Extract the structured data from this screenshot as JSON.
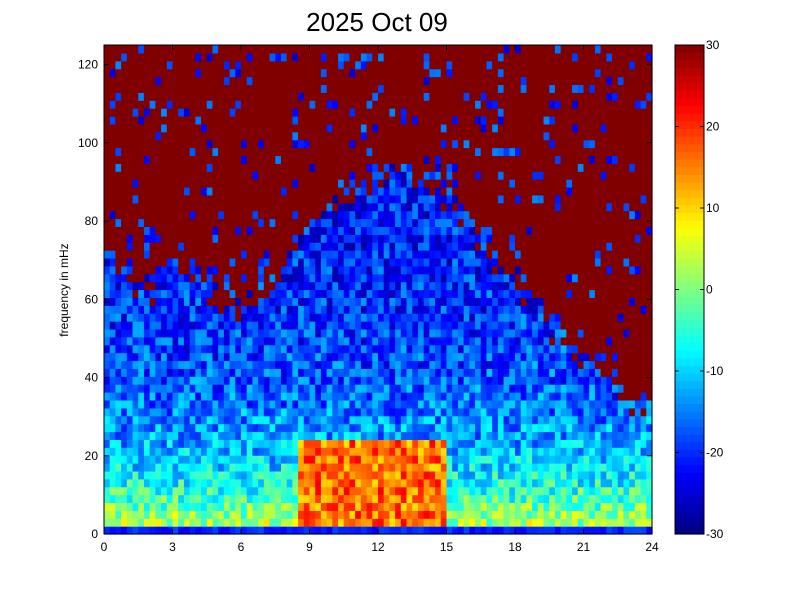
{
  "chart_data": {
    "type": "heatmap",
    "title": "2025 Oct 09",
    "xlabel": "",
    "ylabel": "frequency in mHz",
    "xlim": [
      0,
      24
    ],
    "ylim": [
      0,
      125
    ],
    "x_ticks": [
      "0",
      "3",
      "6",
      "9",
      "12",
      "15",
      "18",
      "21",
      "24"
    ],
    "y_ticks": [
      "0",
      "20",
      "40",
      "60",
      "80",
      "100",
      "120"
    ],
    "colorbar": {
      "range": [
        -30,
        30
      ],
      "ticks": [
        "30",
        "20",
        "10",
        "0",
        "-10",
        "-20",
        "-30"
      ],
      "colormap": "jet"
    },
    "grid": false,
    "saturated_color": "#800000",
    "approx_noise_floor_mHz_by_hour": [
      [
        0,
        75
      ],
      [
        1,
        66
      ],
      [
        2,
        62
      ],
      [
        3,
        70
      ],
      [
        4,
        66
      ],
      [
        5,
        60
      ],
      [
        6,
        58
      ],
      [
        7,
        62
      ],
      [
        8,
        70
      ],
      [
        9,
        82
      ],
      [
        10,
        84
      ],
      [
        11,
        88
      ],
      [
        12,
        92
      ],
      [
        13,
        95
      ],
      [
        14,
        92
      ],
      [
        15,
        86
      ],
      [
        16,
        80
      ],
      [
        17,
        72
      ],
      [
        18,
        64
      ],
      [
        19,
        60
      ],
      [
        20,
        50
      ],
      [
        21,
        44
      ],
      [
        22,
        38
      ],
      [
        23,
        34
      ],
      [
        24,
        34
      ]
    ],
    "approx_intense_region": {
      "hours": [
        8.5,
        15
      ],
      "frequency_mHz": [
        2,
        25
      ],
      "level": 15
    }
  }
}
